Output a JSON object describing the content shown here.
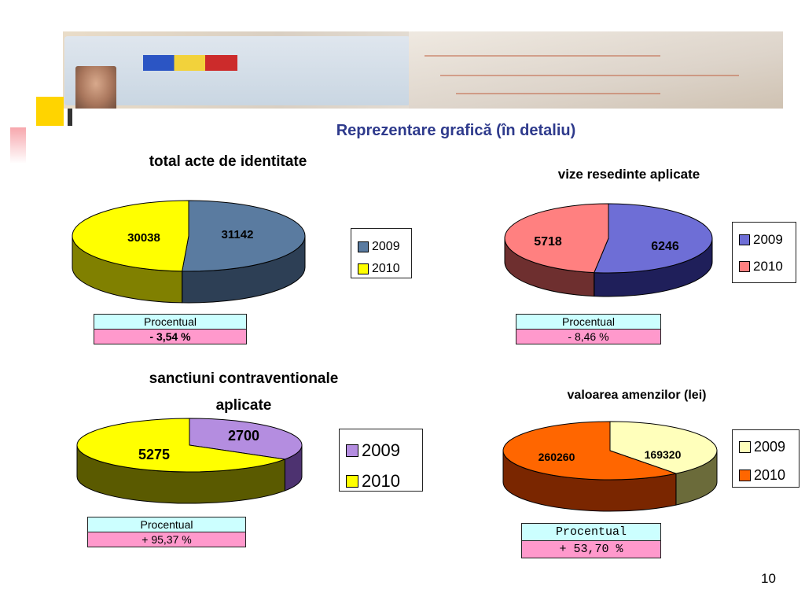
{
  "slide": {
    "title": "Reprezentare grafică (în detaliu)",
    "page_number": "10"
  },
  "colors": {
    "title": "#2e3a8c",
    "pct_header": "#ccffff",
    "pct_value": "#ff99cc"
  },
  "banner": {
    "icons": [
      "identity-card-icon",
      "birth-certificate-icon"
    ]
  },
  "chart_data": [
    {
      "id": "c1",
      "type": "pie",
      "title": "total acte de identitate",
      "categories": [
        "2009",
        "2010"
      ],
      "values": [
        31142,
        30038
      ],
      "value_labels": [
        "31142",
        "30038"
      ],
      "colors": [
        "#5a7ba0",
        "#ffff00"
      ],
      "side_colors": [
        "#2d3f55",
        "#808000"
      ],
      "legend_position": "right",
      "percent_header": "Procentual",
      "percent_value": "- 3,54 %"
    },
    {
      "id": "c2",
      "type": "pie",
      "title": "vize resedinte aplicate",
      "categories": [
        "2009",
        "2010"
      ],
      "values": [
        6246,
        5718
      ],
      "value_labels": [
        "6246",
        "5718"
      ],
      "colors": [
        "#6e6ed6",
        "#ff8080"
      ],
      "side_colors": [
        "#1f1f5a",
        "#6e2f2f"
      ],
      "legend_position": "right",
      "percent_header": "Procentual",
      "percent_value": "- 8,46 %"
    },
    {
      "id": "c3",
      "type": "pie",
      "title_lines": [
        "sanctiuni contraventionale",
        "aplicate"
      ],
      "categories": [
        "2009",
        "2010"
      ],
      "values": [
        2700,
        5275
      ],
      "value_labels": [
        "2700",
        "5275"
      ],
      "colors": [
        "#b48de0",
        "#ffff00"
      ],
      "side_colors": [
        "#4d3270",
        "#5a5a00"
      ],
      "legend_position": "right",
      "percent_header": "Procentual",
      "percent_value": "+ 95,37 %"
    },
    {
      "id": "c4",
      "type": "pie",
      "title": "valoarea amenzilor (lei)",
      "categories": [
        "2009",
        "2010"
      ],
      "values": [
        169320,
        260260
      ],
      "value_labels": [
        "169320",
        "260260"
      ],
      "colors": [
        "#ffffbb",
        "#ff6600"
      ],
      "side_colors": [
        "#6b6b3a",
        "#7a2600"
      ],
      "legend_position": "right",
      "percent_header": "Procentual",
      "percent_value": "+ 53,70 %"
    }
  ]
}
